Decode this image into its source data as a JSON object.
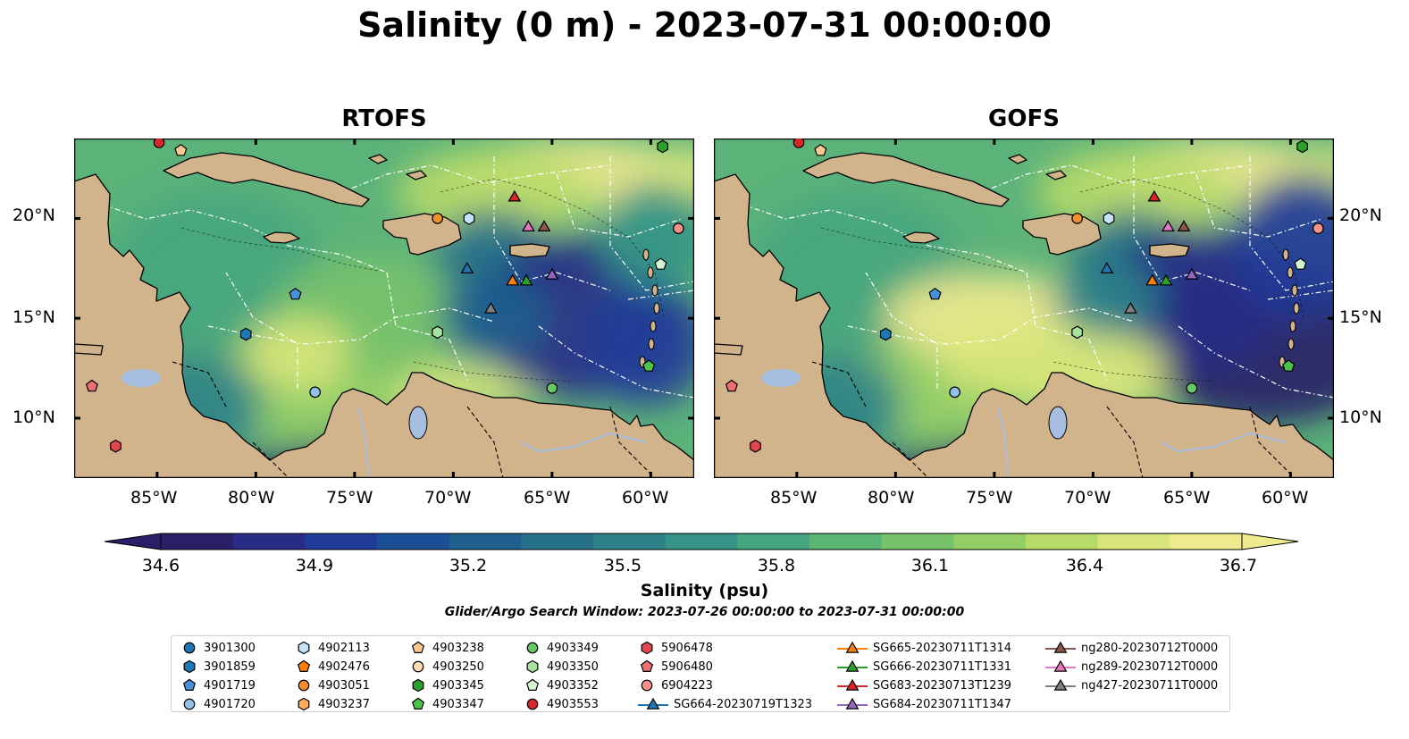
{
  "title": "Salinity (0 m) - 2023-07-31 00:00:00",
  "panels": [
    {
      "title": "RTOFS"
    },
    {
      "title": "GOFS"
    }
  ],
  "axes": {
    "y_ticks": [
      "20°N",
      "15°N",
      "10°N"
    ],
    "x_ticks": [
      "85°W",
      "80°W",
      "75°W",
      "70°W",
      "65°W",
      "60°W"
    ]
  },
  "colorbar": {
    "label": "Salinity (psu)",
    "ticks": [
      "34.6",
      "34.9",
      "35.2",
      "35.5",
      "35.8",
      "36.1",
      "36.4",
      "36.7"
    ],
    "min": 34.6,
    "max": 36.7,
    "colors": [
      "#2a1e68",
      "#282c86",
      "#213b98",
      "#1b4f96",
      "#1f5f8e",
      "#26708a",
      "#2d8288",
      "#359486",
      "#45a57e",
      "#5bb574",
      "#78c26c",
      "#96ce66",
      "#b8da68",
      "#d8e57a",
      "#f0ea8e"
    ]
  },
  "search_window": "Glider/Argo Search Window: 2023-07-26 00:00:00 to 2023-07-31 00:00:00",
  "legend": [
    {
      "label": "3901300",
      "shape": "circle",
      "color": "#1f77b4"
    },
    {
      "label": "3901859",
      "shape": "hexagon",
      "color": "#1f77b4"
    },
    {
      "label": "4901719",
      "shape": "pentagon",
      "color": "#4a90d9"
    },
    {
      "label": "4901720",
      "shape": "circle",
      "color": "#8fc1ea"
    },
    {
      "label": "4902113",
      "shape": "hexagon",
      "color": "#c6e2f7"
    },
    {
      "label": "4902476",
      "shape": "pentagon",
      "color": "#ff7f0e"
    },
    {
      "label": "4903051",
      "shape": "circle",
      "color": "#f28e2b"
    },
    {
      "label": "4903237",
      "shape": "hexagon",
      "color": "#ffad5a"
    },
    {
      "label": "4903238",
      "shape": "pentagon",
      "color": "#ffc891"
    },
    {
      "label": "4903250",
      "shape": "circle",
      "color": "#ffdcb8"
    },
    {
      "label": "4903345",
      "shape": "hexagon",
      "color": "#2ca02c"
    },
    {
      "label": "4903347",
      "shape": "pentagon",
      "color": "#4cc24a"
    },
    {
      "label": "4903349",
      "shape": "circle",
      "color": "#66c966"
    },
    {
      "label": "4903350",
      "shape": "hexagon",
      "color": "#a6e3a0"
    },
    {
      "label": "4903352",
      "shape": "pentagon",
      "color": "#d4f5ce"
    },
    {
      "label": "4903553",
      "shape": "circle",
      "color": "#d62728"
    },
    {
      "label": "5906478",
      "shape": "hexagon",
      "color": "#e0474c"
    },
    {
      "label": "5906480",
      "shape": "pentagon",
      "color": "#ec6f73"
    },
    {
      "label": "6904223",
      "shape": "circle",
      "color": "#f4928a"
    },
    {
      "label": "SG664-20230719T1323",
      "shape": "triangle-line",
      "color": "#1f77b4"
    },
    {
      "label": "SG665-20230711T1314",
      "shape": "triangle-line",
      "color": "#ff7f0e"
    },
    {
      "label": "SG666-20230711T1331",
      "shape": "triangle-line",
      "color": "#2ca02c"
    },
    {
      "label": "SG683-20230713T1239",
      "shape": "triangle-line",
      "color": "#d62728"
    },
    {
      "label": "SG684-20230711T1347",
      "shape": "triangle-line",
      "color": "#9467bd"
    },
    {
      "label": "ng280-20230712T0000",
      "shape": "triangle-line",
      "color": "#8c564b"
    },
    {
      "label": "ng289-20230712T0000",
      "shape": "triangle-line",
      "color": "#e377c2"
    },
    {
      "label": "ng427-20230711T0000",
      "shape": "triangle-line",
      "color": "#7f7f7f"
    }
  ],
  "map_colors": {
    "land": "#d2b48c",
    "water_bodies": "#a6bfe0",
    "contour": "#000000",
    "eez_lines": "#ffffff"
  },
  "markers": [
    {
      "id": "4903553",
      "lon": -84.9,
      "lat": 23.8
    },
    {
      "id": "4903238",
      "lon": -83.8,
      "lat": 23.4
    },
    {
      "id": "4903345",
      "lon": -59.4,
      "lat": 23.6
    },
    {
      "id": "SG683-20230713T1239",
      "lon": -66.9,
      "lat": 21.1
    },
    {
      "id": "4903051",
      "lon": -70.8,
      "lat": 20.0
    },
    {
      "id": "4902113",
      "lon": -69.2,
      "lat": 20.0
    },
    {
      "id": "ng289-20230712T0000",
      "lon": -66.2,
      "lat": 19.6
    },
    {
      "id": "ng280-20230712T0000",
      "lon": -65.4,
      "lat": 19.6
    },
    {
      "id": "6904223",
      "lon": -58.6,
      "lat": 19.5
    },
    {
      "id": "SG664-20230719T1323",
      "lon": -69.3,
      "lat": 17.5
    },
    {
      "id": "4903352",
      "lon": -59.5,
      "lat": 17.7
    },
    {
      "id": "SG665-20230711T1314",
      "lon": -67.0,
      "lat": 16.9
    },
    {
      "id": "SG666-20230711T1331",
      "lon": -66.3,
      "lat": 16.9
    },
    {
      "id": "SG684-20230711T1347",
      "lon": -65.0,
      "lat": 17.2
    },
    {
      "id": "4901719",
      "lon": -78.0,
      "lat": 16.2
    },
    {
      "id": "ng427-20230711T0000",
      "lon": -68.1,
      "lat": 15.5
    },
    {
      "id": "3901859",
      "lon": -80.5,
      "lat": 14.2
    },
    {
      "id": "4903350",
      "lon": -70.8,
      "lat": 14.3
    },
    {
      "id": "4903347",
      "lon": -60.1,
      "lat": 12.6
    },
    {
      "id": "4901720",
      "lon": -77.0,
      "lat": 11.3
    },
    {
      "id": "4903349",
      "lon": -65.0,
      "lat": 11.5
    },
    {
      "id": "5906480",
      "lon": -88.3,
      "lat": 11.6
    },
    {
      "id": "5906478",
      "lon": -87.1,
      "lat": 8.6
    }
  ]
}
